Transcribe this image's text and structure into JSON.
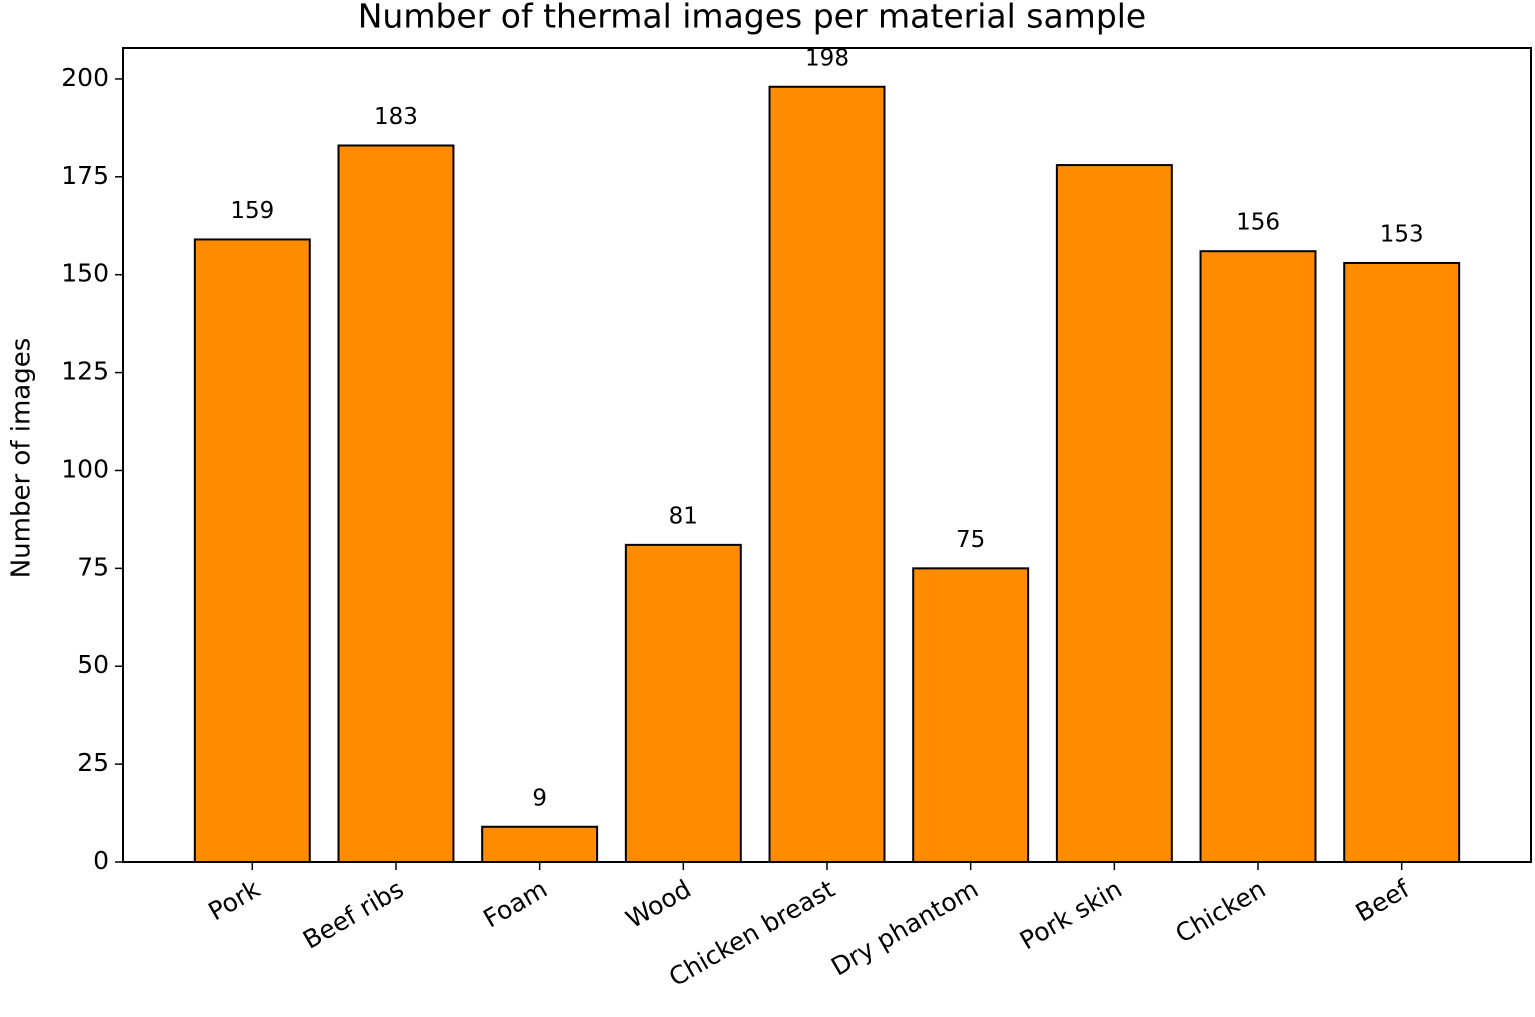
{
  "chart_data": {
    "type": "bar",
    "title": "Number of thermal images per material sample",
    "y_label": "Number of images",
    "categories": [
      "Pork",
      "Beef ribs",
      "Foam",
      "Wood",
      "Chicken breast",
      "Dry phantom",
      "Pork skin",
      "Chicken",
      "Beef"
    ],
    "values": [
      159,
      183,
      9,
      81,
      198,
      75,
      178,
      156,
      153
    ],
    "value_labels": [
      "159",
      "183",
      "9",
      "81",
      "198",
      "75",
      null,
      "156",
      "153"
    ],
    "color": "#ff8c00",
    "ylim": [
      0,
      207.9
    ],
    "yticks": [
      0,
      25,
      50,
      75,
      100,
      125,
      150,
      175,
      200
    ],
    "grid": false
  }
}
